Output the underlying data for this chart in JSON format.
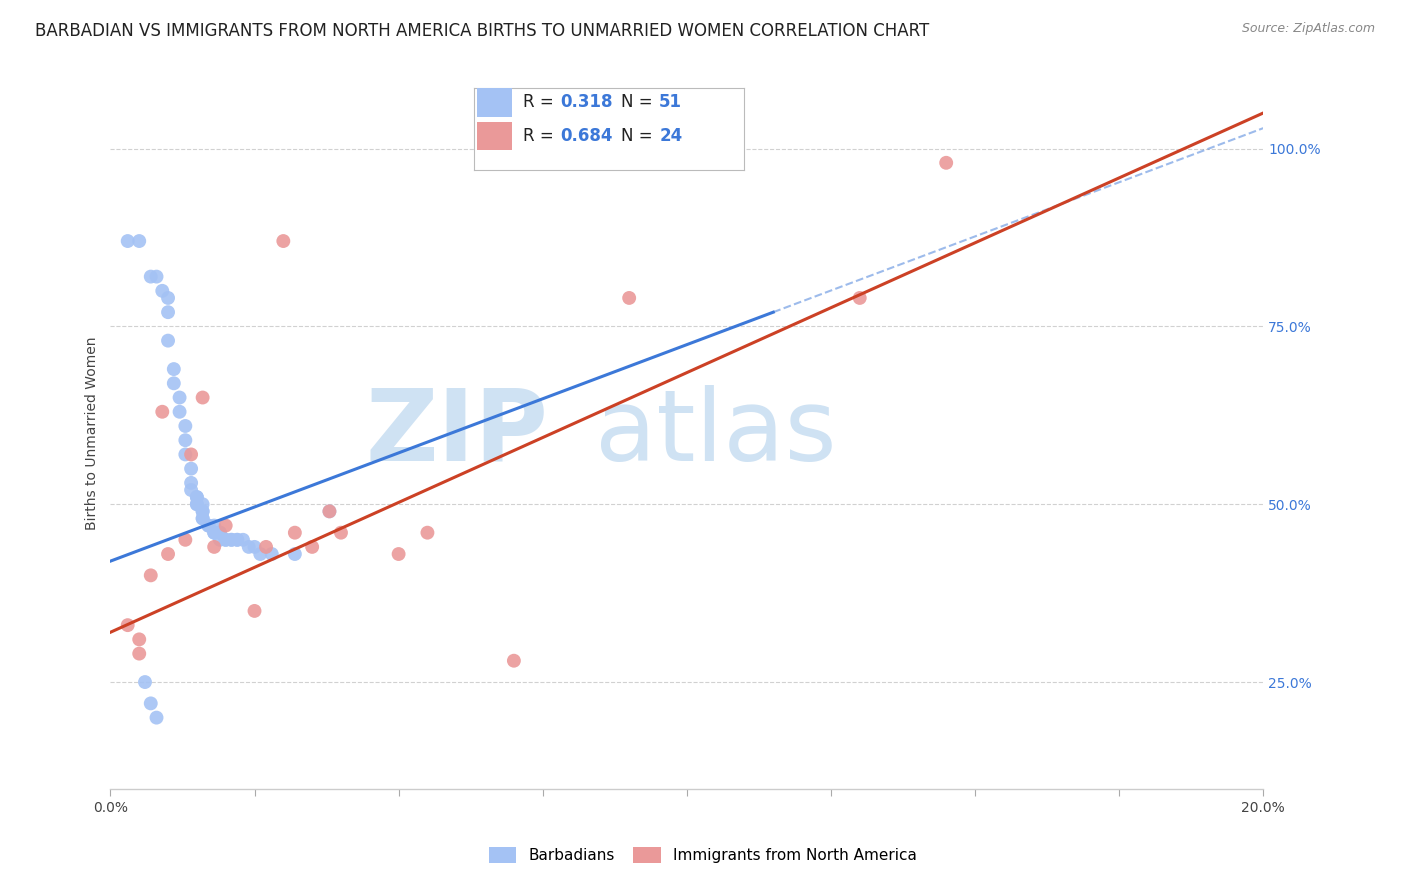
{
  "title": "BARBADIAN VS IMMIGRANTS FROM NORTH AMERICA BIRTHS TO UNMARRIED WOMEN CORRELATION CHART",
  "source": "Source: ZipAtlas.com",
  "ylabel": "Births to Unmarried Women",
  "xmin": 0.0,
  "xmax": 0.2,
  "ymin": 0.1,
  "ymax": 1.1,
  "yticks": [
    0.25,
    0.5,
    0.75,
    1.0
  ],
  "ytick_labels": [
    "25.0%",
    "50.0%",
    "75.0%",
    "100.0%"
  ],
  "xticks": [
    0.0,
    0.025,
    0.05,
    0.075,
    0.1,
    0.125,
    0.15,
    0.175,
    0.2
  ],
  "xtick_labels": [
    "0.0%",
    "",
    "",
    "",
    "",
    "",
    "",
    "",
    "20.0%"
  ],
  "legend_r1": "0.318",
  "legend_n1": "51",
  "legend_r2": "0.684",
  "legend_n2": "24",
  "blue_color": "#a4c2f4",
  "pink_color": "#ea9999",
  "blue_line_color": "#3c78d8",
  "pink_line_color": "#cc4125",
  "watermark_zip": "ZIP",
  "watermark_atlas": "atlas",
  "watermark_color_zip": "#cfe2f3",
  "watermark_color_atlas": "#cfe2f3",
  "background_color": "#ffffff",
  "grid_color": "#cccccc",
  "title_fontsize": 12,
  "axis_label_fontsize": 10,
  "tick_fontsize": 10,
  "scatter_size": 100,
  "blue_scatter_x": [
    0.003,
    0.005,
    0.007,
    0.008,
    0.009,
    0.01,
    0.01,
    0.01,
    0.011,
    0.011,
    0.012,
    0.012,
    0.013,
    0.013,
    0.013,
    0.014,
    0.014,
    0.014,
    0.015,
    0.015,
    0.015,
    0.015,
    0.016,
    0.016,
    0.016,
    0.016,
    0.016,
    0.017,
    0.017,
    0.018,
    0.018,
    0.018,
    0.019,
    0.019,
    0.019,
    0.02,
    0.02,
    0.021,
    0.021,
    0.022,
    0.022,
    0.023,
    0.024,
    0.025,
    0.026,
    0.028,
    0.032,
    0.038,
    0.006,
    0.007,
    0.008
  ],
  "blue_scatter_y": [
    0.87,
    0.87,
    0.82,
    0.82,
    0.8,
    0.79,
    0.77,
    0.73,
    0.69,
    0.67,
    0.65,
    0.63,
    0.61,
    0.59,
    0.57,
    0.55,
    0.53,
    0.52,
    0.51,
    0.51,
    0.5,
    0.5,
    0.5,
    0.49,
    0.49,
    0.48,
    0.48,
    0.47,
    0.47,
    0.47,
    0.46,
    0.46,
    0.46,
    0.46,
    0.45,
    0.45,
    0.45,
    0.45,
    0.45,
    0.45,
    0.45,
    0.45,
    0.44,
    0.44,
    0.43,
    0.43,
    0.43,
    0.49,
    0.25,
    0.22,
    0.2
  ],
  "pink_scatter_x": [
    0.003,
    0.005,
    0.005,
    0.007,
    0.009,
    0.01,
    0.013,
    0.014,
    0.016,
    0.018,
    0.02,
    0.025,
    0.027,
    0.03,
    0.032,
    0.035,
    0.038,
    0.04,
    0.05,
    0.055,
    0.07,
    0.09,
    0.13,
    0.145
  ],
  "pink_scatter_y": [
    0.33,
    0.31,
    0.29,
    0.4,
    0.63,
    0.43,
    0.45,
    0.57,
    0.65,
    0.44,
    0.47,
    0.35,
    0.44,
    0.87,
    0.46,
    0.44,
    0.49,
    0.46,
    0.43,
    0.46,
    0.28,
    0.79,
    0.79,
    0.98
  ],
  "blue_trendline_x": [
    0.0,
    0.115
  ],
  "blue_trendline_y": [
    0.42,
    0.77
  ],
  "pink_trendline_x": [
    0.0,
    0.2
  ],
  "pink_trendline_y": [
    0.32,
    1.05
  ]
}
